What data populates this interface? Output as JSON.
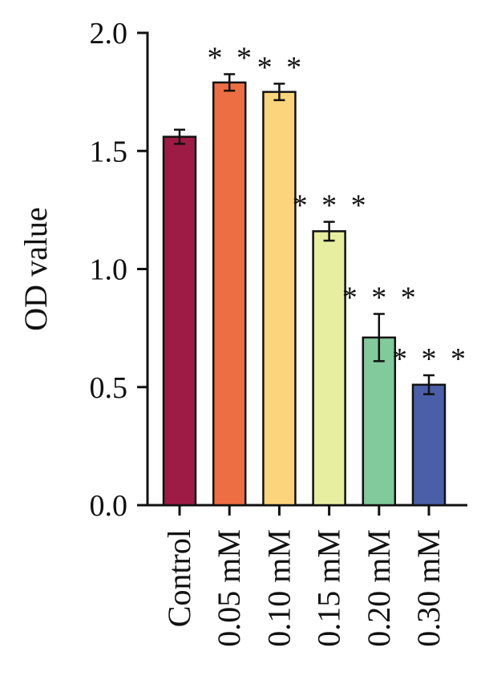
{
  "chart_data": {
    "type": "bar",
    "title": "",
    "xlabel": "",
    "ylabel": "OD value",
    "ylim": [
      0,
      2.0
    ],
    "yticks": [
      0.0,
      0.5,
      1.0,
      1.5,
      2.0
    ],
    "ytick_labels": [
      "0.0",
      "0.5",
      "1.0",
      "1.5",
      "2.0"
    ],
    "grid": false,
    "categories": [
      "Control",
      "0.05 mM",
      "0.10 mM",
      "0.15 mM",
      "0.20 mM",
      "0.30 mM"
    ],
    "values": [
      1.56,
      1.79,
      1.75,
      1.16,
      0.71,
      0.51
    ],
    "errors": [
      0.03,
      0.035,
      0.035,
      0.04,
      0.1,
      0.04
    ],
    "significance": [
      "",
      "* *",
      "* *",
      "* * *",
      "* * *",
      "* * *"
    ],
    "colors": [
      "#9e1b45",
      "#ee6e43",
      "#fbd47c",
      "#e8eea0",
      "#82c99b",
      "#4a5fa8"
    ]
  }
}
